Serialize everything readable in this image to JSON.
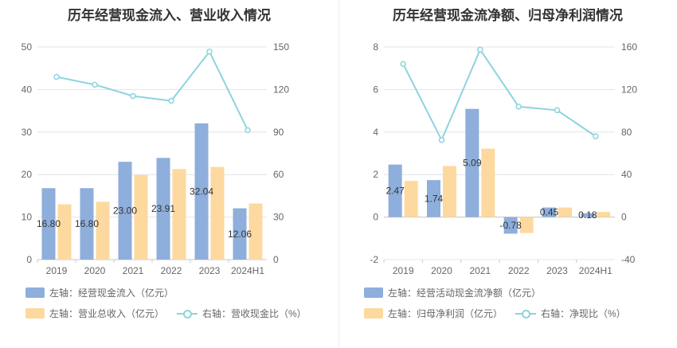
{
  "colors": {
    "bar_primary": "#8eaedb",
    "bar_secondary": "#fdd9a0",
    "line": "#8ed4dc",
    "grid": "#e4e4e4",
    "axis_text": "#666666"
  },
  "chart_data": [
    {
      "type": "bar",
      "title": "历年经营现金流入、营业收入情况",
      "categories": [
        "2019",
        "2020",
        "2021",
        "2022",
        "2023",
        "2024H1"
      ],
      "left_axis": {
        "ylim": [
          0,
          50
        ],
        "ticks": [
          0,
          10,
          20,
          30,
          40,
          50
        ]
      },
      "right_axis": {
        "ylim": [
          0,
          150
        ],
        "ticks": [
          0,
          30,
          60,
          90,
          120,
          150
        ]
      },
      "grid": true,
      "legend_position": "bottom-left",
      "series": [
        {
          "name": "左轴：经营现金流入（亿元）",
          "type": "bar",
          "axis": "left",
          "values": [
            16.8,
            16.8,
            23.0,
            23.91,
            32.04,
            12.06
          ],
          "labels": [
            "16.80",
            "16.80",
            "23.00",
            "23.91",
            "32.04",
            "12.06"
          ]
        },
        {
          "name": "左轴：营业总收入（亿元）",
          "type": "bar",
          "axis": "left",
          "values": [
            13.0,
            13.6,
            19.9,
            21.3,
            21.8,
            13.2
          ]
        },
        {
          "name": "右轴：营收现金比（%）",
          "type": "line",
          "axis": "right",
          "values": [
            128.9,
            123.4,
            115.4,
            112.0,
            146.7,
            91.3
          ]
        }
      ]
    },
    {
      "type": "bar",
      "title": "历年经营现金流净额、归母净利润情况",
      "categories": [
        "2019",
        "2020",
        "2021",
        "2022",
        "2023",
        "2024H1"
      ],
      "left_axis": {
        "ylim": [
          -2,
          8
        ],
        "ticks": [
          -2,
          0,
          2,
          4,
          6,
          8
        ]
      },
      "right_axis": {
        "ylim": [
          -40,
          160
        ],
        "ticks": [
          -40,
          0,
          40,
          80,
          120,
          160
        ]
      },
      "grid": true,
      "legend_position": "bottom-left",
      "series": [
        {
          "name": "左轴：经营活动现金流净额（亿元）",
          "type": "bar",
          "axis": "left",
          "values": [
            2.47,
            1.74,
            5.09,
            -0.78,
            0.45,
            0.18
          ],
          "labels": [
            "2.47",
            "1.74",
            "5.09",
            "-0.78",
            "0.45",
            "0.18"
          ]
        },
        {
          "name": "左轴：归母净利润（亿元）",
          "type": "bar",
          "axis": "left",
          "values": [
            1.7,
            2.4,
            3.22,
            -0.75,
            0.45,
            0.24
          ]
        },
        {
          "name": "右轴：净现比（%）",
          "type": "line",
          "axis": "right",
          "values": [
            144.0,
            72.5,
            157.5,
            103.9,
            100.5,
            76.0
          ]
        }
      ]
    }
  ]
}
